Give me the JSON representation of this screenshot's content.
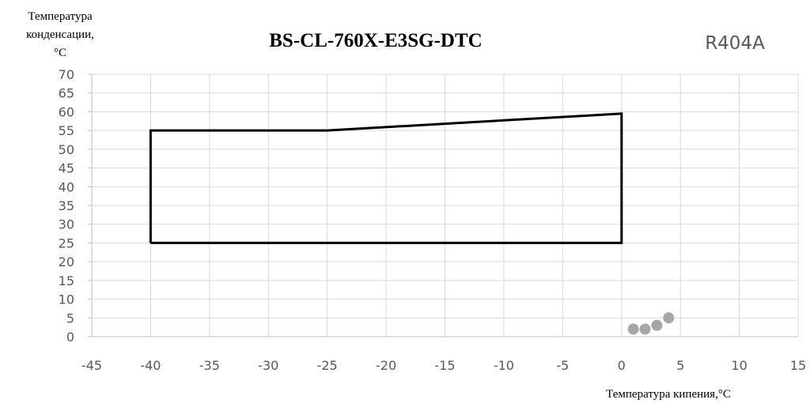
{
  "chart_data": {
    "type": "line",
    "title": "BS-CL-760X-E3SG-DTC",
    "refrigerant": "R404A",
    "ylabel_lines": [
      "Температура",
      "конденсации,",
      "°C"
    ],
    "xlabel": "Температура кипения,°C",
    "xlim": [
      -45,
      15
    ],
    "ylim": [
      0,
      70
    ],
    "x_ticks": [
      -45,
      -40,
      -35,
      -30,
      -25,
      -20,
      -15,
      -10,
      -5,
      0,
      5,
      10,
      15
    ],
    "y_ticks": [
      0,
      5,
      10,
      15,
      20,
      25,
      30,
      35,
      40,
      45,
      50,
      55,
      60,
      65,
      70
    ],
    "grid": true,
    "series": [
      {
        "type": "line",
        "color": "#000000",
        "points": [
          [
            -40,
            25
          ],
          [
            -40,
            55
          ],
          [
            -25,
            55
          ],
          [
            0,
            59.5
          ],
          [
            0,
            25
          ],
          [
            -40,
            25
          ]
        ]
      },
      {
        "type": "scatter",
        "color": "#a6a6a6",
        "points": [
          [
            1,
            2
          ],
          [
            2,
            2
          ],
          [
            3,
            3
          ],
          [
            4,
            5
          ]
        ]
      }
    ]
  }
}
